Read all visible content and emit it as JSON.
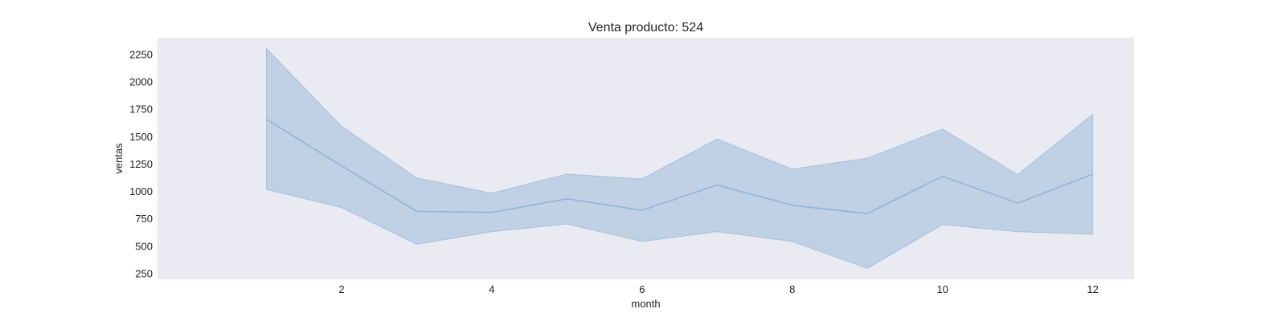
{
  "chart_data": {
    "type": "line",
    "title": "Venta producto: 524",
    "xlabel": "month",
    "ylabel": "ventas",
    "x": [
      1,
      2,
      3,
      4,
      5,
      6,
      7,
      8,
      9,
      10,
      11,
      12
    ],
    "xticks": [
      2,
      4,
      6,
      8,
      10,
      12
    ],
    "yticks": [
      250,
      500,
      750,
      1000,
      1250,
      1500,
      1750,
      2000,
      2250
    ],
    "xlim": [
      -0.45,
      12.55
    ],
    "ylim": [
      195,
      2400
    ],
    "grid": false,
    "series": [
      {
        "values": [
          1655,
          1230,
          815,
          805,
          930,
          825,
          1055,
          870,
          795,
          1135,
          890,
          1155
        ],
        "upper": [
          2300,
          1590,
          1120,
          980,
          1155,
          1110,
          1475,
          1200,
          1300,
          1565,
          1150,
          1700
        ],
        "lower": [
          1015,
          850,
          515,
          630,
          700,
          540,
          630,
          540,
          295,
          695,
          630,
          605
        ]
      }
    ],
    "colors": {
      "plot_background": "#eaeaf2",
      "line": "#8fb4d4",
      "band_fill": "#a8c2dd",
      "band_edge": "#a3c0db"
    }
  }
}
